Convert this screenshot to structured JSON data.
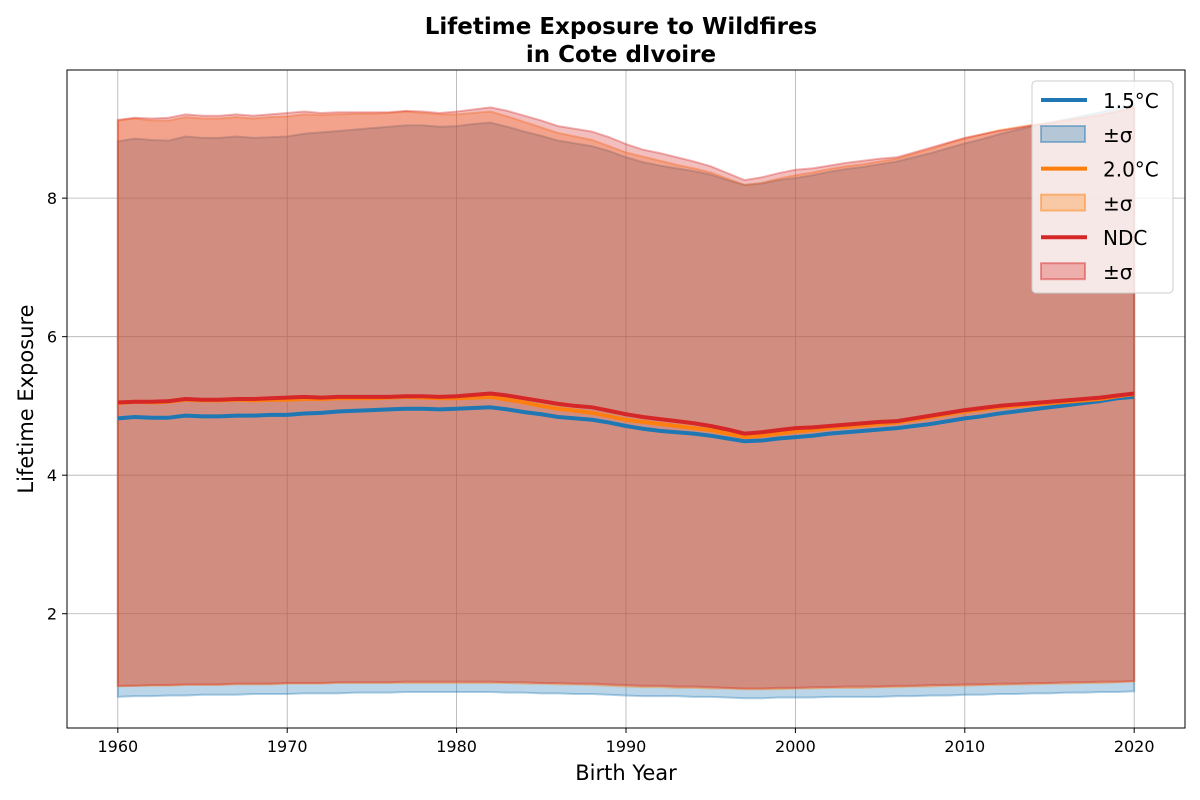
{
  "chart_data": {
    "type": "area",
    "title": "Lifetime Exposure to Wildfires",
    "subtitle": "in Cote dIvoire",
    "xlabel": "Birth Year",
    "ylabel": "Lifetime Exposure",
    "xlim": [
      1957,
      2023
    ],
    "ylim": [
      0.35,
      9.85
    ],
    "xticks": [
      1960,
      1970,
      1980,
      1990,
      2000,
      2010,
      2020
    ],
    "yticks": [
      2,
      4,
      6,
      8
    ],
    "grid": true,
    "legend_position": "top-right",
    "legend_entries": [
      "1.5°C",
      "±σ",
      "2.0°C",
      "±σ",
      "NDC",
      "±σ"
    ],
    "x": [
      1960,
      1961,
      1962,
      1963,
      1964,
      1965,
      1966,
      1967,
      1968,
      1969,
      1970,
      1971,
      1972,
      1973,
      1974,
      1975,
      1976,
      1977,
      1978,
      1979,
      1980,
      1981,
      1982,
      1983,
      1984,
      1985,
      1986,
      1987,
      1988,
      1989,
      1990,
      1991,
      1992,
      1993,
      1994,
      1995,
      1996,
      1997,
      1998,
      1999,
      2000,
      2001,
      2002,
      2003,
      2004,
      2005,
      2006,
      2007,
      2008,
      2009,
      2010,
      2011,
      2012,
      2013,
      2014,
      2015,
      2016,
      2017,
      2018,
      2019,
      2020
    ],
    "series": [
      {
        "name": "1.5°C",
        "color": "#1f77b4",
        "mean": [
          4.82,
          4.84,
          4.83,
          4.83,
          4.86,
          4.85,
          4.85,
          4.86,
          4.86,
          4.87,
          4.87,
          4.89,
          4.9,
          4.92,
          4.93,
          4.94,
          4.95,
          4.96,
          4.96,
          4.95,
          4.96,
          4.97,
          4.98,
          4.95,
          4.91,
          4.88,
          4.84,
          4.82,
          4.8,
          4.76,
          4.71,
          4.67,
          4.64,
          4.62,
          4.6,
          4.57,
          4.53,
          4.49,
          4.5,
          4.53,
          4.55,
          4.57,
          4.6,
          4.62,
          4.64,
          4.66,
          4.68,
          4.71,
          4.74,
          4.78,
          4.82,
          4.85,
          4.89,
          4.92,
          4.95,
          4.98,
          5.01,
          5.04,
          5.07,
          5.11,
          5.13
        ],
        "lower": [
          0.8,
          0.81,
          0.81,
          0.82,
          0.82,
          0.83,
          0.83,
          0.83,
          0.84,
          0.84,
          0.84,
          0.85,
          0.85,
          0.85,
          0.86,
          0.86,
          0.86,
          0.87,
          0.87,
          0.87,
          0.87,
          0.87,
          0.87,
          0.86,
          0.86,
          0.85,
          0.85,
          0.84,
          0.84,
          0.83,
          0.82,
          0.81,
          0.81,
          0.81,
          0.8,
          0.8,
          0.79,
          0.78,
          0.78,
          0.79,
          0.79,
          0.79,
          0.8,
          0.8,
          0.8,
          0.8,
          0.81,
          0.81,
          0.82,
          0.82,
          0.83,
          0.83,
          0.84,
          0.84,
          0.85,
          0.85,
          0.86,
          0.86,
          0.87,
          0.87,
          0.88
        ],
        "upper": [
          8.82,
          8.86,
          8.84,
          8.83,
          8.89,
          8.87,
          8.87,
          8.89,
          8.87,
          8.88,
          8.89,
          8.93,
          8.95,
          8.97,
          8.99,
          9.01,
          9.03,
          9.05,
          9.05,
          9.03,
          9.04,
          9.07,
          9.09,
          9.03,
          8.96,
          8.9,
          8.83,
          8.79,
          8.75,
          8.68,
          8.59,
          8.52,
          8.47,
          8.43,
          8.39,
          8.34,
          8.26,
          8.19,
          8.21,
          8.26,
          8.29,
          8.33,
          8.38,
          8.42,
          8.45,
          8.49,
          8.53,
          8.59,
          8.65,
          8.72,
          8.79,
          8.85,
          8.92,
          8.98,
          9.04,
          9.09,
          9.14,
          9.19,
          9.24,
          9.3,
          9.34
        ]
      },
      {
        "name": "2.0°C",
        "color": "#ff7f0e",
        "mean": [
          5.04,
          5.06,
          5.05,
          5.06,
          5.09,
          5.08,
          5.08,
          5.09,
          5.08,
          5.09,
          5.09,
          5.1,
          5.1,
          5.11,
          5.11,
          5.11,
          5.12,
          5.13,
          5.12,
          5.11,
          5.11,
          5.12,
          5.13,
          5.09,
          5.05,
          5.0,
          4.96,
          4.93,
          4.9,
          4.85,
          4.8,
          4.77,
          4.74,
          4.71,
          4.68,
          4.65,
          4.6,
          4.55,
          4.57,
          4.6,
          4.63,
          4.65,
          4.68,
          4.7,
          4.72,
          4.74,
          4.76,
          4.8,
          4.84,
          4.88,
          4.92,
          4.95,
          4.98,
          5.0,
          5.02,
          5.04,
          5.06,
          5.08,
          5.1,
          5.14,
          5.17
        ],
        "lower": [
          0.95,
          0.96,
          0.96,
          0.96,
          0.97,
          0.97,
          0.97,
          0.98,
          0.98,
          0.98,
          0.99,
          0.99,
          0.99,
          1.0,
          1.0,
          1.0,
          1.0,
          1.0,
          1.0,
          1.0,
          1.0,
          1.0,
          1.0,
          1.0,
          0.99,
          0.99,
          0.98,
          0.98,
          0.97,
          0.96,
          0.95,
          0.94,
          0.94,
          0.93,
          0.93,
          0.92,
          0.92,
          0.91,
          0.91,
          0.91,
          0.92,
          0.92,
          0.93,
          0.93,
          0.93,
          0.94,
          0.94,
          0.95,
          0.95,
          0.96,
          0.96,
          0.97,
          0.97,
          0.98,
          0.98,
          0.99,
          0.99,
          1.0,
          1.0,
          1.01,
          1.02
        ],
        "upper": [
          9.12,
          9.15,
          9.12,
          9.12,
          9.17,
          9.15,
          9.15,
          9.17,
          9.15,
          9.17,
          9.18,
          9.21,
          9.2,
          9.21,
          9.22,
          9.22,
          9.23,
          9.25,
          9.23,
          9.21,
          9.21,
          9.23,
          9.25,
          9.18,
          9.1,
          9.02,
          8.94,
          8.89,
          8.84,
          8.75,
          8.66,
          8.6,
          8.54,
          8.48,
          8.43,
          8.37,
          8.28,
          8.19,
          8.22,
          8.28,
          8.33,
          8.37,
          8.42,
          8.46,
          8.49,
          8.53,
          8.57,
          8.64,
          8.71,
          8.79,
          8.86,
          8.92,
          8.98,
          9.02,
          9.06,
          9.09,
          9.13,
          9.16,
          9.2,
          9.26,
          9.32
        ]
      },
      {
        "name": "NDC",
        "color": "#d62728",
        "mean": [
          5.05,
          5.06,
          5.06,
          5.07,
          5.1,
          5.09,
          5.09,
          5.1,
          5.1,
          5.11,
          5.12,
          5.13,
          5.12,
          5.13,
          5.13,
          5.13,
          5.13,
          5.14,
          5.14,
          5.13,
          5.14,
          5.16,
          5.18,
          5.15,
          5.11,
          5.07,
          5.03,
          5.0,
          4.98,
          4.93,
          4.88,
          4.84,
          4.81,
          4.78,
          4.75,
          4.71,
          4.66,
          4.6,
          4.62,
          4.65,
          4.68,
          4.69,
          4.71,
          4.73,
          4.75,
          4.77,
          4.78,
          4.82,
          4.86,
          4.9,
          4.94,
          4.97,
          5.0,
          5.02,
          5.04,
          5.06,
          5.08,
          5.1,
          5.12,
          5.15,
          5.18
        ],
        "lower": [
          0.96,
          0.96,
          0.97,
          0.97,
          0.98,
          0.98,
          0.98,
          0.99,
          0.99,
          0.99,
          1.0,
          1.0,
          1.0,
          1.01,
          1.01,
          1.01,
          1.01,
          1.02,
          1.02,
          1.02,
          1.02,
          1.02,
          1.02,
          1.01,
          1.01,
          1.0,
          1.0,
          0.99,
          0.99,
          0.98,
          0.97,
          0.96,
          0.96,
          0.95,
          0.95,
          0.94,
          0.93,
          0.92,
          0.92,
          0.93,
          0.93,
          0.94,
          0.94,
          0.95,
          0.95,
          0.95,
          0.96,
          0.96,
          0.97,
          0.97,
          0.98,
          0.98,
          0.99,
          0.99,
          1.0,
          1.0,
          1.01,
          1.01,
          1.02,
          1.02,
          1.03
        ],
        "upper": [
          9.13,
          9.16,
          9.15,
          9.16,
          9.21,
          9.19,
          9.19,
          9.21,
          9.19,
          9.21,
          9.23,
          9.25,
          9.23,
          9.24,
          9.24,
          9.24,
          9.24,
          9.26,
          9.25,
          9.23,
          9.25,
          9.28,
          9.31,
          9.26,
          9.19,
          9.12,
          9.04,
          9.0,
          8.96,
          8.88,
          8.78,
          8.7,
          8.65,
          8.59,
          8.53,
          8.46,
          8.36,
          8.26,
          8.3,
          8.36,
          8.41,
          8.43,
          8.47,
          8.51,
          8.54,
          8.57,
          8.59,
          8.66,
          8.73,
          8.8,
          8.87,
          8.92,
          8.97,
          9.01,
          9.05,
          9.08,
          9.12,
          9.16,
          9.2,
          9.25,
          9.31
        ]
      }
    ]
  }
}
